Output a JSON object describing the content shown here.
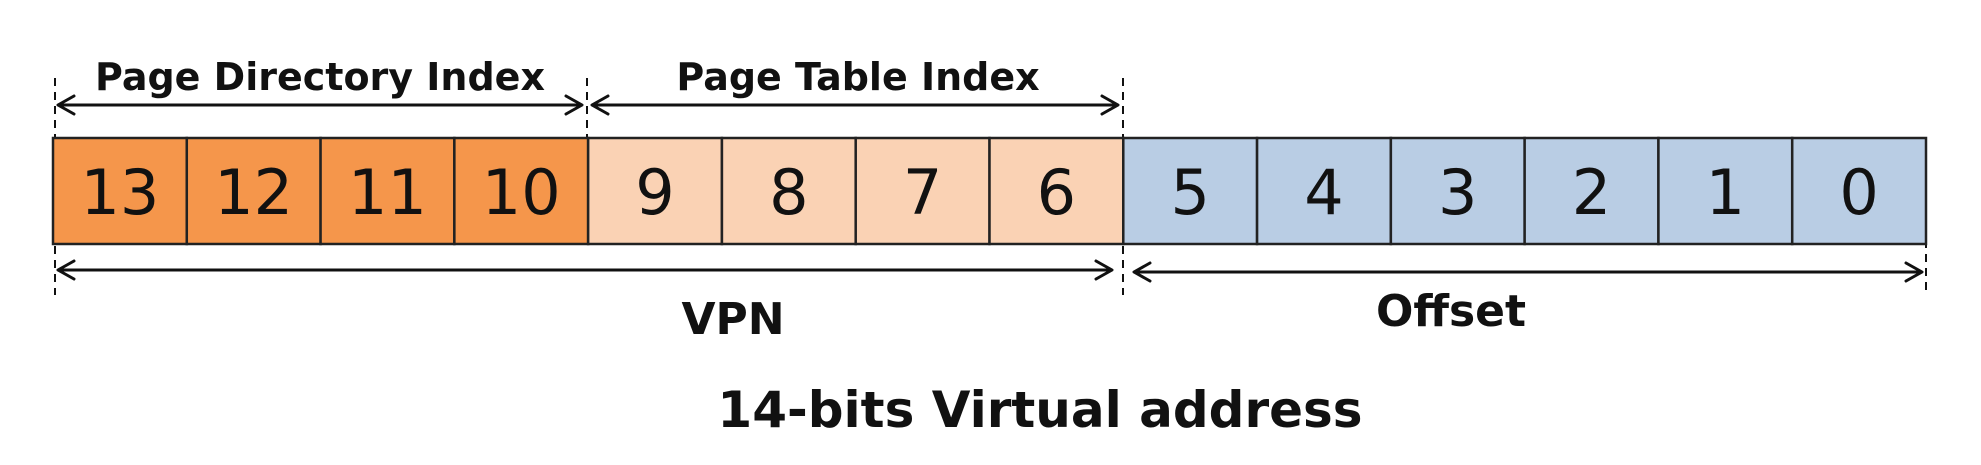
{
  "bits": [
    {
      "label": "13",
      "group": "pdi"
    },
    {
      "label": "12",
      "group": "pdi"
    },
    {
      "label": "11",
      "group": "pdi"
    },
    {
      "label": "10",
      "group": "pdi"
    },
    {
      "label": "9",
      "group": "pti"
    },
    {
      "label": "8",
      "group": "pti"
    },
    {
      "label": "7",
      "group": "pti"
    },
    {
      "label": "6",
      "group": "pti"
    },
    {
      "label": "5",
      "group": "offset"
    },
    {
      "label": "4",
      "group": "offset"
    },
    {
      "label": "3",
      "group": "offset"
    },
    {
      "label": "2",
      "group": "offset"
    },
    {
      "label": "1",
      "group": "offset"
    },
    {
      "label": "0",
      "group": "offset"
    }
  ],
  "colors": {
    "pdi": "#F5964B",
    "pti": "#FAD2B4",
    "offset": "#B9CDE4"
  },
  "labels": {
    "page_directory_index": "Page Directory Index",
    "page_table_index": "Page Table Index",
    "vpn": "VPN",
    "offset": "Offset",
    "caption": "14-bits Virtual address"
  }
}
